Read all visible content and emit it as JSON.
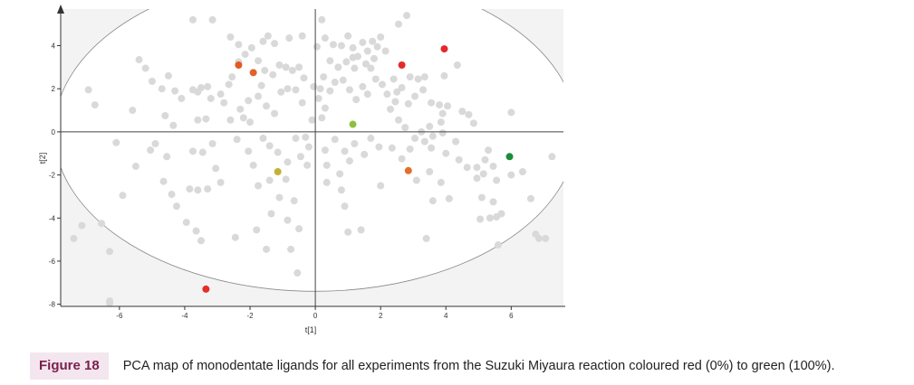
{
  "chart_data": {
    "type": "scatter",
    "xlabel": "t[1]",
    "ylabel": "t[2]",
    "xlim": [
      -7.8,
      7.6
    ],
    "ylim": [
      -8.1,
      5.7
    ],
    "x_ticks": [
      "-6",
      "-4",
      "-2",
      "0",
      "2",
      "4",
      "6"
    ],
    "y_ticks": [
      "4",
      "2",
      "0",
      "-2",
      "-4",
      "-6",
      "-8"
    ],
    "ellipse": {
      "center": [
        0,
        0
      ],
      "semi_axis_x": 8.0,
      "semi_axis_y": 7.4
    },
    "grey_color": "#d9d9d9",
    "grey_points": [
      [
        -6.95,
        1.95
      ],
      [
        -6.75,
        1.25
      ],
      [
        -6.1,
        -0.5
      ],
      [
        -5.6,
        1.0
      ],
      [
        -5.4,
        3.35
      ],
      [
        -5.2,
        2.95
      ],
      [
        -5.0,
        2.35
      ],
      [
        -4.7,
        2.0
      ],
      [
        -4.5,
        2.6
      ],
      [
        -4.3,
        1.9
      ],
      [
        -4.1,
        1.55
      ],
      [
        -4.6,
        0.75
      ],
      [
        -4.35,
        0.3
      ],
      [
        -4.9,
        -0.55
      ],
      [
        -5.05,
        -0.85
      ],
      [
        -4.55,
        -1.15
      ],
      [
        -5.5,
        -1.6
      ],
      [
        -5.9,
        -2.95
      ],
      [
        -4.65,
        -2.3
      ],
      [
        -4.4,
        -2.9
      ],
      [
        -4.25,
        -3.45
      ],
      [
        -3.95,
        -4.2
      ],
      [
        -3.65,
        -4.6
      ],
      [
        -3.5,
        -5.05
      ],
      [
        -3.85,
        -2.65
      ],
      [
        -3.6,
        -2.7
      ],
      [
        -3.3,
        -2.65
      ],
      [
        -3.75,
        -0.9
      ],
      [
        -3.45,
        -0.95
      ],
      [
        -3.15,
        -0.55
      ],
      [
        -3.05,
        -1.7
      ],
      [
        -2.9,
        -2.35
      ],
      [
        -3.6,
        0.55
      ],
      [
        -3.35,
        0.6
      ],
      [
        -3.2,
        1.55
      ],
      [
        -3.6,
        1.85
      ],
      [
        -3.75,
        1.95
      ],
      [
        -3.5,
        2.05
      ],
      [
        -3.3,
        2.1
      ],
      [
        -2.9,
        1.75
      ],
      [
        -2.8,
        1.35
      ],
      [
        -2.6,
        0.55
      ],
      [
        -2.2,
        0.65
      ],
      [
        -2.0,
        0.45
      ],
      [
        -2.3,
        1.05
      ],
      [
        -2.05,
        1.45
      ],
      [
        -1.75,
        1.65
      ],
      [
        -1.5,
        1.2
      ],
      [
        -1.25,
        0.85
      ],
      [
        -2.65,
        2.2
      ],
      [
        -2.55,
        2.55
      ],
      [
        -2.35,
        3.25
      ],
      [
        -2.15,
        3.6
      ],
      [
        -1.95,
        3.9
      ],
      [
        -1.6,
        4.2
      ],
      [
        -1.45,
        4.45
      ],
      [
        -1.25,
        4.1
      ],
      [
        -1.75,
        3.3
      ],
      [
        -1.55,
        2.85
      ],
      [
        -1.3,
        2.65
      ],
      [
        -1.1,
        3.1
      ],
      [
        -0.9,
        3.0
      ],
      [
        -0.7,
        2.85
      ],
      [
        -0.5,
        3.0
      ],
      [
        -0.35,
        2.5
      ],
      [
        -0.85,
        2.0
      ],
      [
        -1.05,
        1.85
      ],
      [
        -0.6,
        1.95
      ],
      [
        -0.4,
        1.35
      ],
      [
        -1.65,
        2.15
      ],
      [
        -2.4,
        -0.35
      ],
      [
        -2.05,
        -0.9
      ],
      [
        -1.9,
        -1.55
      ],
      [
        -1.6,
        -0.3
      ],
      [
        -1.4,
        -0.65
      ],
      [
        -1.15,
        -0.95
      ],
      [
        -0.85,
        -1.4
      ],
      [
        -0.6,
        -0.3
      ],
      [
        -0.3,
        -0.25
      ],
      [
        -0.2,
        -0.7
      ],
      [
        -0.45,
        -1.15
      ],
      [
        -0.25,
        -1.55
      ],
      [
        -1.4,
        -2.25
      ],
      [
        -1.75,
        -2.5
      ],
      [
        -0.9,
        -2.2
      ],
      [
        -1.1,
        -3.05
      ],
      [
        -0.65,
        -3.2
      ],
      [
        -1.35,
        -3.8
      ],
      [
        -0.85,
        -4.1
      ],
      [
        -0.5,
        -4.5
      ],
      [
        -1.5,
        -5.45
      ],
      [
        -0.75,
        -5.45
      ],
      [
        -0.55,
        -6.55
      ],
      [
        -1.8,
        -4.55
      ],
      [
        -2.45,
        -4.9
      ],
      [
        -3.15,
        5.2
      ],
      [
        -2.35,
        4.05
      ],
      [
        -0.4,
        4.45
      ],
      [
        0.05,
        3.95
      ],
      [
        0.2,
        5.2
      ],
      [
        0.3,
        4.35
      ],
      [
        0.55,
        4.05
      ],
      [
        0.8,
        4.0
      ],
      [
        1.0,
        4.45
      ],
      [
        1.15,
        3.9
      ],
      [
        1.3,
        3.5
      ],
      [
        1.45,
        4.15
      ],
      [
        1.6,
        3.75
      ],
      [
        1.75,
        4.2
      ],
      [
        1.9,
        3.95
      ],
      [
        2.0,
        4.4
      ],
      [
        2.15,
        3.75
      ],
      [
        1.8,
        3.4
      ],
      [
        1.55,
        3.15
      ],
      [
        1.2,
        2.95
      ],
      [
        0.95,
        3.25
      ],
      [
        0.7,
        3.0
      ],
      [
        0.45,
        3.3
      ],
      [
        0.25,
        2.55
      ],
      [
        0.15,
        2.0
      ],
      [
        0.1,
        1.55
      ],
      [
        0.3,
        1.1
      ],
      [
        0.45,
        1.9
      ],
      [
        0.6,
        2.3
      ],
      [
        0.85,
        2.4
      ],
      [
        1.05,
        1.95
      ],
      [
        1.25,
        1.5
      ],
      [
        1.45,
        2.1
      ],
      [
        1.6,
        1.75
      ],
      [
        1.85,
        2.45
      ],
      [
        2.05,
        2.2
      ],
      [
        2.2,
        1.75
      ],
      [
        2.45,
        1.4
      ],
      [
        2.3,
        1.05
      ],
      [
        2.55,
        0.55
      ],
      [
        2.75,
        0.2
      ],
      [
        2.5,
        1.85
      ],
      [
        2.65,
        2.05
      ],
      [
        2.9,
        2.55
      ],
      [
        3.15,
        2.45
      ],
      [
        3.35,
        2.55
      ],
      [
        3.3,
        1.95
      ],
      [
        3.05,
        1.65
      ],
      [
        2.85,
        1.3
      ],
      [
        3.55,
        1.35
      ],
      [
        3.8,
        1.25
      ],
      [
        3.9,
        0.85
      ],
      [
        3.85,
        0.45
      ],
      [
        3.5,
        0.25
      ],
      [
        3.25,
        0.0
      ],
      [
        3.05,
        -0.3
      ],
      [
        3.35,
        -0.45
      ],
      [
        3.6,
        -0.2
      ],
      [
        3.9,
        -0.05
      ],
      [
        2.9,
        -0.8
      ],
      [
        2.65,
        -1.25
      ],
      [
        2.35,
        -0.75
      ],
      [
        1.95,
        -0.7
      ],
      [
        1.7,
        -0.3
      ],
      [
        1.5,
        -1.05
      ],
      [
        1.2,
        -0.55
      ],
      [
        0.9,
        -0.9
      ],
      [
        0.6,
        -0.35
      ],
      [
        0.3,
        -0.85
      ],
      [
        0.35,
        -1.55
      ],
      [
        0.75,
        -1.95
      ],
      [
        1.05,
        -1.35
      ],
      [
        0.35,
        -2.35
      ],
      [
        0.8,
        -2.7
      ],
      [
        0.9,
        -3.45
      ],
      [
        1.4,
        -4.55
      ],
      [
        1.0,
        -4.65
      ],
      [
        2.0,
        -2.5
      ],
      [
        3.1,
        -2.25
      ],
      [
        3.5,
        -1.85
      ],
      [
        3.85,
        -2.35
      ],
      [
        4.1,
        -3.1
      ],
      [
        3.6,
        -3.2
      ],
      [
        3.4,
        -4.95
      ],
      [
        4.3,
        -0.45
      ],
      [
        4.4,
        -1.3
      ],
      [
        4.65,
        -1.65
      ],
      [
        4.95,
        -1.65
      ],
      [
        5.2,
        -1.3
      ],
      [
        5.3,
        -0.85
      ],
      [
        5.45,
        -1.6
      ],
      [
        5.15,
        -1.95
      ],
      [
        5.55,
        -2.25
      ],
      [
        4.95,
        -2.15
      ],
      [
        5.1,
        -3.05
      ],
      [
        5.45,
        -3.25
      ],
      [
        5.7,
        -3.8
      ],
      [
        5.55,
        -3.95
      ],
      [
        5.35,
        -4.0
      ],
      [
        5.05,
        -4.05
      ],
      [
        5.6,
        -5.25
      ],
      [
        6.0,
        -2.0
      ],
      [
        6.35,
        -1.85
      ],
      [
        6.6,
        -3.1
      ],
      [
        6.75,
        -4.75
      ],
      [
        6.85,
        -4.95
      ],
      [
        7.05,
        -4.95
      ],
      [
        7.25,
        -1.15
      ],
      [
        6.0,
        0.9
      ],
      [
        3.95,
        2.6
      ],
      [
        4.05,
        1.2
      ],
      [
        4.35,
        3.1
      ],
      [
        4.5,
        0.95
      ],
      [
        4.7,
        0.8
      ],
      [
        4.85,
        0.4
      ],
      [
        2.55,
        5.0
      ],
      [
        2.8,
        5.4
      ],
      [
        1.15,
        3.45
      ],
      [
        -7.4,
        -4.95
      ],
      [
        -7.15,
        -4.35
      ],
      [
        -6.55,
        -4.25
      ],
      [
        -6.3,
        -5.55
      ],
      [
        -3.75,
        5.2
      ],
      [
        -2.6,
        4.4
      ],
      [
        -0.05,
        2.1
      ],
      [
        -0.1,
        0.55
      ],
      [
        0.2,
        0.65
      ],
      [
        -0.8,
        4.35
      ],
      [
        -6.3,
        -7.95
      ],
      [
        -6.3,
        -7.85
      ],
      [
        2.4,
        2.45
      ],
      [
        1.7,
        2.95
      ],
      [
        3.55,
        -0.75
      ],
      [
        4.0,
        -1.0
      ]
    ],
    "highlighted_points": [
      {
        "x": -3.35,
        "y": -7.3,
        "color": "#e23028"
      },
      {
        "x": -2.35,
        "y": 3.1,
        "color": "#e25a22"
      },
      {
        "x": -1.9,
        "y": 2.75,
        "color": "#e1632a"
      },
      {
        "x": 2.65,
        "y": 3.1,
        "color": "#e32b2b"
      },
      {
        "x": 3.95,
        "y": 3.85,
        "color": "#e3282e"
      },
      {
        "x": 2.85,
        "y": -1.8,
        "color": "#e3702c"
      },
      {
        "x": -1.15,
        "y": -1.85,
        "color": "#c4b234"
      },
      {
        "x": 1.15,
        "y": 0.35,
        "color": "#8dc040"
      },
      {
        "x": 5.95,
        "y": -1.15,
        "color": "#1c8c3c"
      }
    ]
  },
  "caption": {
    "label": "Figure 18",
    "text": "PCA map of monodentate ligands for all experiments from the Suzuki Miyaura reaction coloured red (0%) to green (100%)."
  }
}
